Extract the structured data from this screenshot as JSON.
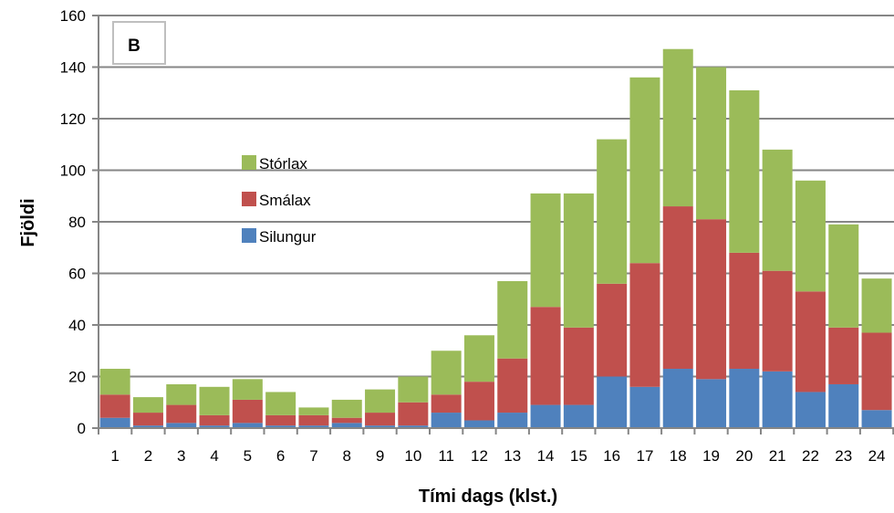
{
  "chart_data": {
    "type": "bar",
    "stacked": true,
    "panel_label": "B",
    "xlabel": "Tími dags (klst.)",
    "ylabel": "Fjöldi",
    "ylim": [
      0,
      160
    ],
    "y_ticks": [
      0,
      20,
      40,
      60,
      80,
      100,
      120,
      140,
      160
    ],
    "grid": true,
    "legend_position": "center-left",
    "categories": [
      "1",
      "2",
      "3",
      "4",
      "5",
      "6",
      "7",
      "8",
      "9",
      "10",
      "11",
      "12",
      "13",
      "14",
      "15",
      "16",
      "17",
      "18",
      "19",
      "20",
      "21",
      "22",
      "23",
      "24"
    ],
    "series": [
      {
        "name": "Silungur",
        "color": "#4f81bd",
        "values": [
          4,
          1,
          2,
          1,
          2,
          1,
          1,
          2,
          1,
          1,
          6,
          3,
          6,
          9,
          9,
          20,
          16,
          23,
          19,
          23,
          22,
          14,
          17,
          7
        ]
      },
      {
        "name": "Smálax",
        "color": "#c0504d",
        "values": [
          9,
          5,
          7,
          4,
          9,
          4,
          4,
          2,
          5,
          9,
          7,
          15,
          21,
          38,
          30,
          36,
          48,
          63,
          62,
          45,
          39,
          39,
          22,
          30
        ]
      },
      {
        "name": "Stórlax",
        "color": "#9bbb59",
        "values": [
          10,
          6,
          8,
          11,
          8,
          9,
          3,
          7,
          9,
          10,
          17,
          18,
          30,
          44,
          52,
          56,
          72,
          61,
          59,
          63,
          47,
          43,
          40,
          21
        ]
      }
    ],
    "legend_order": [
      "Stórlax",
      "Smálax",
      "Silungur"
    ]
  }
}
